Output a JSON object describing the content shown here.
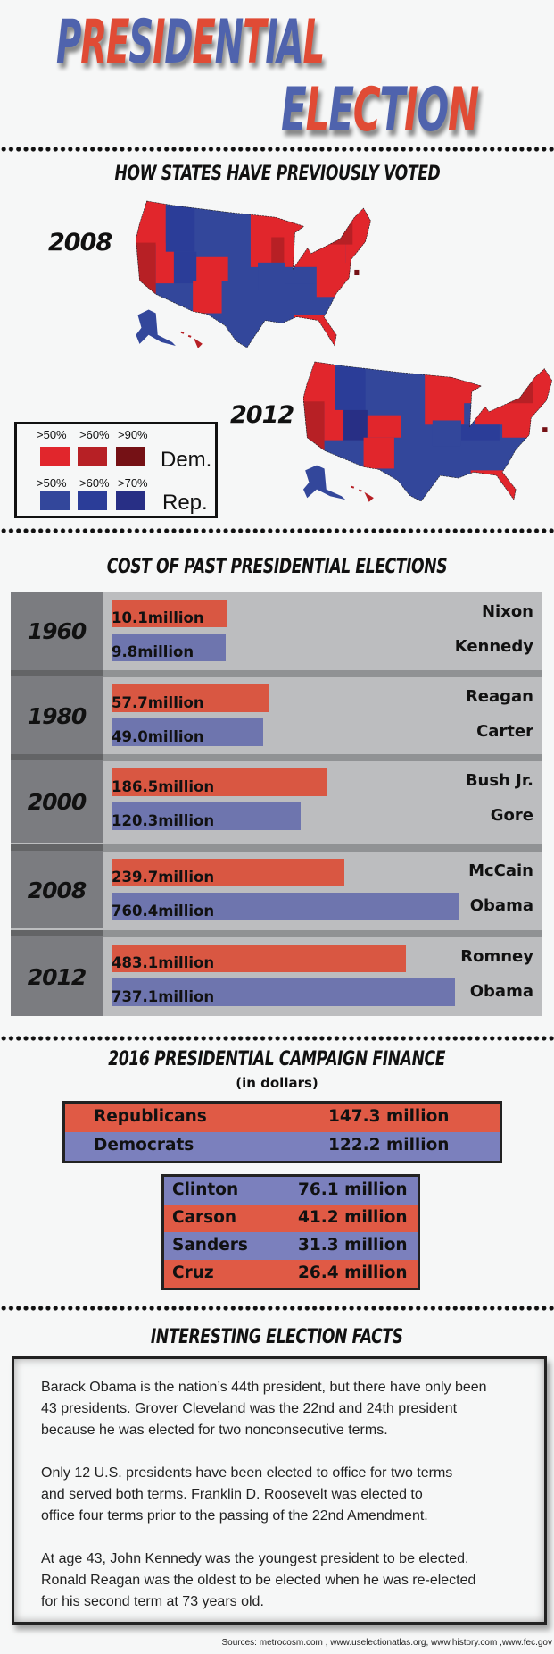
{
  "title": {
    "line1": "PRESIDENTIAL",
    "line2": "ELECTION",
    "line1_colors": [
      "blue",
      "red",
      "red",
      "blue",
      "red",
      "blue",
      "red",
      "blue",
      "red",
      "blue",
      "blue",
      "red"
    ],
    "line2_colors": [
      "blue",
      "red",
      "blue",
      "red",
      "blue",
      "red",
      "blue",
      "red"
    ],
    "colors": {
      "blue": "#4f63ad",
      "red": "#e04b35"
    }
  },
  "maps": {
    "heading": "HOW STATES HAVE PREVIOUSLY VOTED",
    "year_2008": "2008",
    "year_2012": "2012",
    "legend": {
      "dem_label": "Dem.",
      "rep_label": "Rep.",
      "dem": [
        {
          "threshold": ">50%",
          "color": "#e1262c"
        },
        {
          "threshold": ">60%",
          "color": "#b72025"
        },
        {
          "threshold": ">90%",
          "color": "#751115"
        }
      ],
      "rep": [
        {
          "threshold": ">50%",
          "color": "#33479b"
        },
        {
          "threshold": ">60%",
          "color": "#2b3d98"
        },
        {
          "threshold": ">70%",
          "color": "#282f85"
        }
      ]
    }
  },
  "cost": {
    "heading": "COST OF PAST PRESIDENTIAL ELECTIONS"
  },
  "chart_data": {
    "type": "bar",
    "title": "COST OF PAST PRESIDENTIAL ELECTIONS",
    "unit": "million",
    "colors": {
      "rep": "#d95742",
      "dem": "#6e75ae"
    },
    "rows": [
      {
        "year": "1960",
        "candidates": [
          {
            "name": "Nixon",
            "party": "rep",
            "value": 10.1,
            "label": "10.1million"
          },
          {
            "name": "Kennedy",
            "party": "dem",
            "value": 9.8,
            "label": "9.8million"
          }
        ]
      },
      {
        "year": "1980",
        "candidates": [
          {
            "name": "Reagan",
            "party": "rep",
            "value": 57.7,
            "label": "57.7million"
          },
          {
            "name": "Carter",
            "party": "dem",
            "value": 49.0,
            "label": "49.0million"
          }
        ]
      },
      {
        "year": "2000",
        "candidates": [
          {
            "name": "Bush Jr.",
            "party": "rep",
            "value": 186.5,
            "label": "186.5million"
          },
          {
            "name": "Gore",
            "party": "dem",
            "value": 120.3,
            "label": "120.3million"
          }
        ]
      },
      {
        "year": "2008",
        "candidates": [
          {
            "name": "McCain",
            "party": "rep",
            "value": 239.7,
            "label": "239.7million"
          },
          {
            "name": "Obama",
            "party": "dem",
            "value": 760.4,
            "label": "760.4million"
          }
        ]
      },
      {
        "year": "2012",
        "candidates": [
          {
            "name": "Romney",
            "party": "rep",
            "value": 483.1,
            "label": "483.1million"
          },
          {
            "name": "Obama",
            "party": "dem",
            "value": 737.1,
            "label": "737.1million"
          }
        ]
      }
    ]
  },
  "finance": {
    "heading": "2016 PRESIDENTIAL CAMPAIGN FINANCE",
    "subheading": "(in dollars)",
    "colors": {
      "rep": "#e05a45",
      "dem": "#7b80bd"
    },
    "parties": [
      {
        "name": "Republicans",
        "amount": "147.3 million",
        "party": "rep"
      },
      {
        "name": "Democrats",
        "amount": "122.2 million",
        "party": "dem"
      }
    ],
    "candidates": [
      {
        "name": "Clinton",
        "amount": "76.1 million",
        "party": "dem"
      },
      {
        "name": "Carson",
        "amount": "41.2 million",
        "party": "rep"
      },
      {
        "name": "Sanders",
        "amount": "31.3 million",
        "party": "dem"
      },
      {
        "name": "Cruz",
        "amount": "26.4 million",
        "party": "rep"
      }
    ]
  },
  "facts": {
    "heading": "INTERESTING ELECTION FACTS",
    "paragraphs": [
      [
        "Barack Obama is the nation’s 44th president, but there have only been",
        "43 presidents.  Grover Cleveland was the 22nd and 24th president",
        "because he was elected for two nonconsecutive terms."
      ],
      [
        "Only 12 U.S. presidents have been elected to office for two terms",
        "and served both terms.  Franklin D. Roosevelt was elected to",
        "office four terms prior to the passing of the 22nd Amendment."
      ],
      [
        "At age 43, John Kennedy was the youngest president to be elected.",
        "Ronald Reagan was the oldest to be elected when he was re-elected",
        "for his second term at 73 years old."
      ]
    ]
  },
  "sources": "Sources: metrocosm.com , www.uselectionatlas.org, www.history.com ,www.fec.gov"
}
